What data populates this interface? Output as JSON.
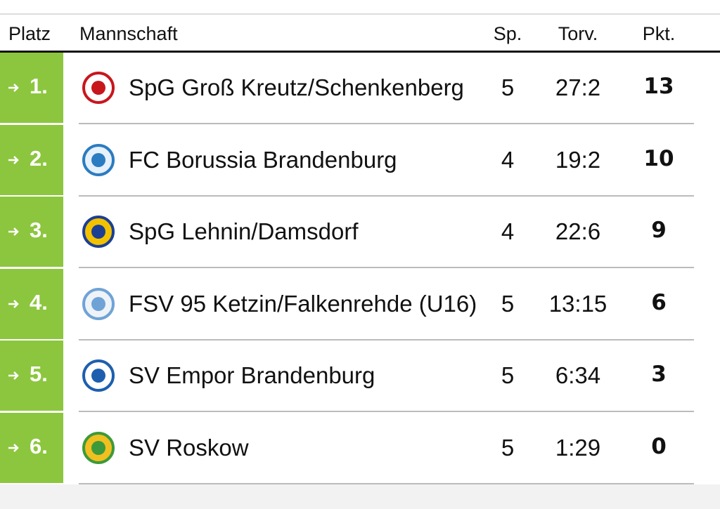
{
  "table": {
    "header": [
      "Platz",
      "Mannschaft",
      "Sp.",
      "Torv.",
      "Pkt."
    ],
    "rows": [
      [
        "1.",
        "SpG Groß Kreutz/Schenkenberg",
        5,
        "27:2",
        13
      ],
      [
        "2.",
        "FC Borussia Brandenburg",
        4,
        "19:2",
        10
      ],
      [
        "3.",
        "SpG Lehnin/Damsdorf",
        4,
        "22:6",
        9
      ],
      [
        "4.",
        "FSV 95 Ketzin/Falkenrehde (U16)",
        5,
        "13:15",
        6
      ],
      [
        "5.",
        "SV Empor Brandenburg",
        5,
        "6:34",
        3
      ],
      [
        "6.",
        "SV Roskow",
        5,
        "1:29",
        0
      ]
    ]
  }
}
